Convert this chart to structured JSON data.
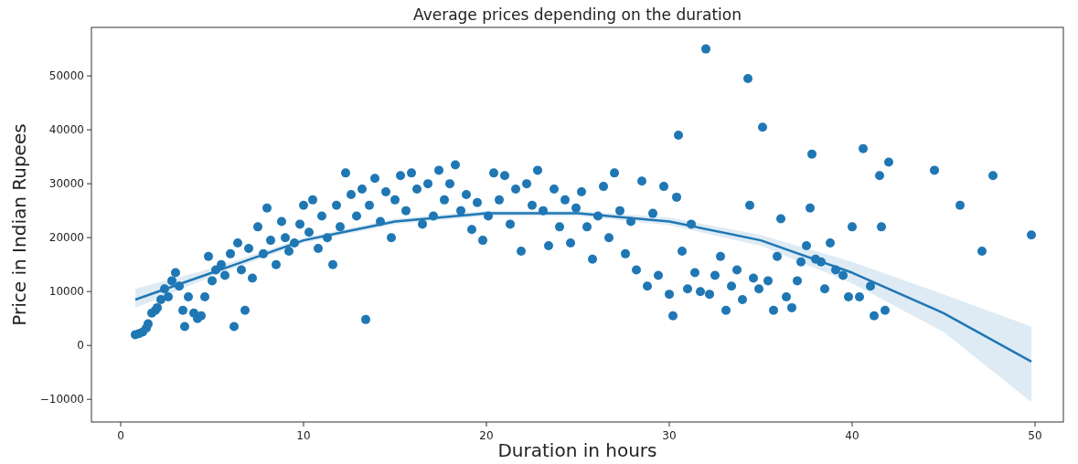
{
  "chart_data": {
    "type": "scatter",
    "title": "Average prices depending on the duration",
    "xlabel": "Duration in hours",
    "ylabel": "Price in Indian Rupees",
    "xlim": [
      -1.6,
      51.55
    ],
    "ylim": [
      -14200,
      59000
    ],
    "xticks": [
      0,
      10,
      20,
      30,
      40,
      50
    ],
    "yticks": [
      -10000,
      0,
      10000,
      20000,
      30000,
      40000,
      50000
    ],
    "grid": false,
    "series": [
      {
        "marker": "circle",
        "color": "#1f77b4",
        "x": [
          0.8,
          1,
          1.2,
          1.4,
          1.5,
          1.7,
          1.9,
          2,
          2.2,
          2.4,
          2.6,
          2.8,
          3,
          3.2,
          3.4,
          3.5,
          3.7,
          4,
          4.2,
          4.4,
          4.6,
          4.8,
          5,
          5.2,
          5.5,
          5.7,
          6,
          6.2,
          6.4,
          6.6,
          6.8,
          7,
          7.2,
          7.5,
          7.8,
          8,
          8.2,
          8.5,
          8.8,
          9,
          9.2,
          9.5,
          9.8,
          10,
          10.3,
          10.5,
          10.8,
          11,
          11.3,
          11.6,
          11.8,
          12,
          12.3,
          12.6,
          12.9,
          13.2,
          13.4,
          13.6,
          13.9,
          14.2,
          14.5,
          14.8,
          15,
          15.3,
          15.6,
          15.9,
          16.2,
          16.5,
          16.8,
          17.1,
          17.4,
          17.7,
          18,
          18.3,
          18.6,
          18.9,
          19.2,
          19.5,
          19.8,
          20.1,
          20.4,
          20.7,
          21,
          21.3,
          21.6,
          21.9,
          22.2,
          22.5,
          22.8,
          23.1,
          23.4,
          23.7,
          24,
          24.3,
          24.6,
          24.9,
          25.2,
          25.5,
          25.8,
          26.1,
          26.4,
          26.7,
          27,
          27.3,
          27.6,
          27.9,
          28.2,
          28.5,
          28.8,
          29.1,
          29.4,
          29.7,
          30,
          30.2,
          30.4,
          30.5,
          30.7,
          31,
          31.2,
          31.4,
          31.7,
          32,
          32.2,
          32.5,
          32.8,
          33.1,
          33.4,
          33.7,
          34,
          34.3,
          34.4,
          34.6,
          34.9,
          35.1,
          35.4,
          35.7,
          35.9,
          36.1,
          36.4,
          36.7,
          37,
          37.2,
          37.5,
          37.8,
          37.7,
          38,
          38.3,
          38.5,
          38.8,
          39.1,
          39.5,
          39.8,
          40,
          40.4,
          40.6,
          41,
          41.2,
          41.5,
          41.6,
          41.8,
          42,
          44.5,
          45.9,
          47.1,
          47.7,
          49.8
        ],
        "values": [
          2000,
          2200,
          2500,
          3200,
          4000,
          6000,
          6500,
          7000,
          8500,
          10500,
          9000,
          12000,
          13500,
          11000,
          6500,
          3500,
          9000,
          6000,
          5000,
          5500,
          9000,
          16500,
          12000,
          14000,
          15000,
          13000,
          17000,
          3500,
          19000,
          14000,
          6500,
          18000,
          12500,
          22000,
          17000,
          25500,
          19500,
          15000,
          23000,
          20000,
          17500,
          19000,
          22500,
          26000,
          21000,
          27000,
          18000,
          24000,
          20000,
          15000,
          26000,
          22000,
          32000,
          28000,
          24000,
          29000,
          4800,
          26000,
          31000,
          23000,
          28500,
          20000,
          27000,
          31500,
          25000,
          32000,
          29000,
          22500,
          30000,
          24000,
          32500,
          27000,
          30000,
          33500,
          25000,
          28000,
          21500,
          26500,
          19500,
          24000,
          32000,
          27000,
          31500,
          22500,
          29000,
          17500,
          30000,
          26000,
          32500,
          25000,
          18500,
          29000,
          22000,
          27000,
          19000,
          25500,
          28500,
          22000,
          16000,
          24000,
          29500,
          20000,
          32000,
          25000,
          17000,
          23000,
          14000,
          30500,
          11000,
          24500,
          13000,
          29500,
          9500,
          5500,
          27500,
          39000,
          17500,
          10500,
          22500,
          13500,
          10000,
          55000,
          9500,
          13000,
          16500,
          6500,
          11000,
          14000,
          8500,
          49500,
          26000,
          12500,
          10500,
          40500,
          12000,
          6500,
          16500,
          23500,
          9000,
          7000,
          12000,
          15500,
          18500,
          35500,
          25500,
          16000,
          15500,
          10500,
          19000,
          14000,
          13000,
          9000,
          22000,
          9000,
          36500,
          11000,
          5500,
          31500,
          22000,
          6500,
          34000,
          32500,
          26000,
          17500,
          31500,
          20500
        ]
      },
      {
        "type": "line",
        "line_style": "solid",
        "color": "#1f77b4",
        "x": [
          0.8,
          5,
          10,
          15,
          20,
          25,
          30,
          35,
          40,
          45,
          49.8
        ],
        "values": [
          8500,
          13500,
          19500,
          23000,
          24500,
          24500,
          23000,
          19500,
          13500,
          6000,
          -3000
        ],
        "lower": [
          7000,
          12800,
          19000,
          22500,
          24000,
          24000,
          22300,
          18500,
          11500,
          2500,
          -10500
        ],
        "upper": [
          10500,
          14300,
          20000,
          23500,
          25000,
          25000,
          23700,
          20500,
          15500,
          9500,
          3500
        ]
      }
    ]
  }
}
